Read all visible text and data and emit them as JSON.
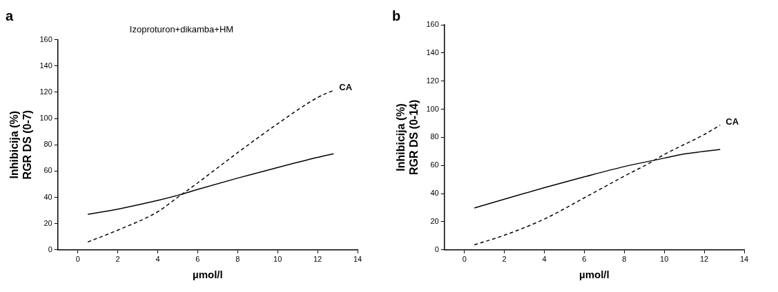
{
  "chart_data": [
    {
      "type": "line",
      "title": "a",
      "subtitle": "Izoproturon+dikamba+HM",
      "xlabel": "µmol/l",
      "ylabel": "Inhibicija (%)\nRGR DS (0-7)",
      "xlim": [
        -1,
        14
      ],
      "ylim": [
        0,
        160
      ],
      "xticks": [
        0,
        2,
        4,
        6,
        8,
        10,
        12,
        14
      ],
      "yticks": [
        0,
        20,
        40,
        60,
        80,
        100,
        120,
        140,
        160
      ],
      "grid": false,
      "legend": false,
      "marker": "none",
      "series": [
        {
          "color": "#000000",
          "line_style": "solid",
          "x": [
            0.5,
            2,
            4,
            5,
            6,
            8,
            10,
            12,
            12.8
          ],
          "values": [
            27,
            31,
            37.6,
            41.5,
            46,
            54.6,
            62.7,
            70.4,
            73.2
          ]
        },
        {
          "name": "CA",
          "color": "#000000",
          "line_style": "dashed",
          "x": [
            0.5,
            2,
            4,
            5,
            6,
            8,
            10,
            12,
            12.8
          ],
          "values": [
            6,
            15,
            29,
            40,
            51,
            74,
            96,
            116,
            121.5
          ]
        }
      ]
    },
    {
      "type": "line",
      "title": "b",
      "xlabel": "µmol/l",
      "ylabel": "Inhibicija (%)\nRGR DS (0-14)",
      "xlim": [
        -1,
        14
      ],
      "ylim": [
        0,
        160
      ],
      "xticks": [
        0,
        2,
        4,
        6,
        8,
        10,
        12,
        14
      ],
      "yticks": [
        0,
        20,
        40,
        60,
        80,
        100,
        120,
        140,
        160
      ],
      "grid": false,
      "legend": false,
      "marker": "none",
      "series": [
        {
          "color": "#000000",
          "line_style": "solid",
          "x": [
            0.5,
            2,
            4,
            6,
            8,
            10,
            11,
            12,
            12.8
          ],
          "values": [
            29.8,
            36,
            44.2,
            51.9,
            59.2,
            65.2,
            68.2,
            70,
            71.4
          ]
        },
        {
          "name": "CA",
          "color": "#000000",
          "line_style": "dashed",
          "x": [
            0.5,
            2,
            4,
            6,
            8,
            9.3,
            10,
            12,
            12.8
          ],
          "values": [
            3.6,
            10.4,
            21.9,
            37,
            52.4,
            62,
            67.8,
            82,
            88.7
          ]
        }
      ]
    }
  ]
}
